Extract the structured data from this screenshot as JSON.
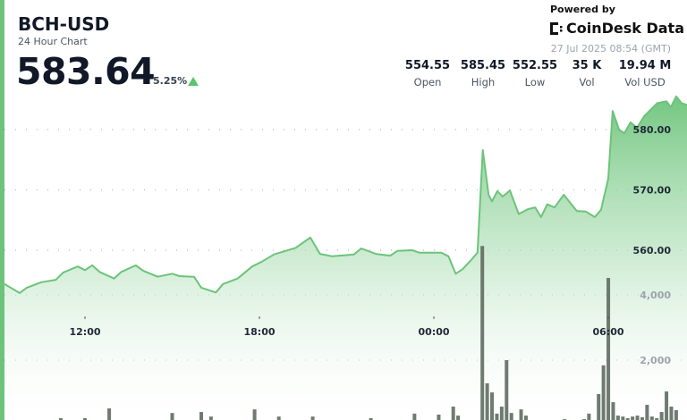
{
  "header": {
    "symbol": "BCH-USD",
    "subtitle": "24 Hour Chart",
    "price": "583.64",
    "change_pct": "5.25%",
    "change_direction": "up",
    "powered_by": "Powered by",
    "brand": "CoinDesk Data",
    "timestamp": "27 Jul 2025 08:54 (GMT)"
  },
  "stats": [
    {
      "value": "554.55",
      "label": "Open"
    },
    {
      "value": "585.45",
      "label": "High"
    },
    {
      "value": "552.55",
      "label": "Low"
    },
    {
      "value": "35 K",
      "label": "Vol"
    },
    {
      "value": "19.94 M",
      "label": "Vol USD"
    }
  ],
  "colors": {
    "accent": "#6cc47a",
    "line": "#6bc47a",
    "volume_bar": "#5f6b60",
    "up": "#5cc46e"
  },
  "chart_data": {
    "type": "line",
    "x_ticks": [
      "12:00",
      "18:00",
      "00:00",
      "06:00"
    ],
    "price_ticks": [
      "560.00",
      "570.00",
      "580.00"
    ],
    "volume_ticks": [
      "2,000",
      "4,000"
    ],
    "price_range": [
      545,
      590
    ],
    "grid": true,
    "price_series": [
      [
        "09:15",
        554.4
      ],
      [
        "09:45",
        552.9
      ],
      [
        "10:00",
        553.8
      ],
      [
        "10:30",
        554.7
      ],
      [
        "11:00",
        555.1
      ],
      [
        "11:15",
        556.3
      ],
      [
        "11:45",
        557.3
      ],
      [
        "12:00",
        556.7
      ],
      [
        "12:15",
        557.5
      ],
      [
        "12:30",
        556.4
      ],
      [
        "13:00",
        555.3
      ],
      [
        "13:15",
        556.4
      ],
      [
        "13:45",
        557.5
      ],
      [
        "14:00",
        556.6
      ],
      [
        "14:30",
        555.6
      ],
      [
        "15:00",
        556.1
      ],
      [
        "15:15",
        555.7
      ],
      [
        "15:45",
        555.6
      ],
      [
        "16:00",
        553.8
      ],
      [
        "16:30",
        553.0
      ],
      [
        "16:45",
        554.4
      ],
      [
        "17:15",
        555.3
      ],
      [
        "17:45",
        557.3
      ],
      [
        "18:05",
        558.1
      ],
      [
        "18:30",
        559.3
      ],
      [
        "19:15",
        560.4
      ],
      [
        "19:45",
        562.1
      ],
      [
        "20:05",
        559.4
      ],
      [
        "20:30",
        559.0
      ],
      [
        "21:15",
        559.3
      ],
      [
        "21:30",
        560.3
      ],
      [
        "22:00",
        559.4
      ],
      [
        "22:30",
        559.1
      ],
      [
        "22:45",
        559.9
      ],
      [
        "23:15",
        560.0
      ],
      [
        "23:30",
        559.6
      ],
      [
        "00:15",
        559.6
      ],
      [
        "00:30",
        559.0
      ],
      [
        "00:45",
        556.1
      ],
      [
        "01:00",
        556.9
      ],
      [
        "01:15",
        558.2
      ],
      [
        "01:30",
        559.6
      ],
      [
        "01:41",
        576.6
      ],
      [
        "01:53",
        569.2
      ],
      [
        "02:00",
        568.1
      ],
      [
        "02:11",
        569.8
      ],
      [
        "02:22",
        568.9
      ],
      [
        "02:37",
        569.9
      ],
      [
        "02:55",
        566.0
      ],
      [
        "03:14",
        566.8
      ],
      [
        "03:29",
        567.1
      ],
      [
        "03:41",
        565.5
      ],
      [
        "03:54",
        567.6
      ],
      [
        "04:09",
        567.1
      ],
      [
        "04:28",
        569.2
      ],
      [
        "04:55",
        566.5
      ],
      [
        "05:14",
        566.4
      ],
      [
        "05:32",
        565.5
      ],
      [
        "05:45",
        566.7
      ],
      [
        "06:00",
        571.9
      ],
      [
        "06:09",
        583.1
      ],
      [
        "06:22",
        580.0
      ],
      [
        "06:33",
        579.4
      ],
      [
        "06:46",
        581.2
      ],
      [
        "06:59",
        580.3
      ],
      [
        "07:14",
        582.2
      ],
      [
        "07:41",
        584.4
      ],
      [
        "08:00",
        584.7
      ],
      [
        "08:09",
        583.7
      ],
      [
        "08:20",
        585.5
      ],
      [
        "08:31",
        584.4
      ],
      [
        "08:42",
        584.1
      ]
    ],
    "volume_series": [
      [
        "11:10",
        220
      ],
      [
        "12:00",
        220
      ],
      [
        "12:50",
        520
      ],
      [
        "15:00",
        380
      ],
      [
        "16:00",
        410
      ],
      [
        "16:20",
        270
      ],
      [
        "17:50",
        490
      ],
      [
        "18:40",
        270
      ],
      [
        "19:50",
        270
      ],
      [
        "21:50",
        220
      ],
      [
        "23:20",
        360
      ],
      [
        "00:10",
        330
      ],
      [
        "00:40",
        575
      ],
      [
        "00:50",
        300
      ],
      [
        "01:40",
        5500
      ],
      [
        "01:50",
        1290
      ],
      [
        "02:00",
        1010
      ],
      [
        "02:10",
        360
      ],
      [
        "02:20",
        575
      ],
      [
        "02:30",
        2000
      ],
      [
        "02:40",
        380
      ],
      [
        "03:00",
        490
      ],
      [
        "03:10",
        300
      ],
      [
        "04:30",
        190
      ],
      [
        "05:10",
        190
      ],
      [
        "05:20",
        360
      ],
      [
        "05:40",
        960
      ],
      [
        "05:50",
        1840
      ],
      [
        "06:00",
        4520
      ],
      [
        "06:10",
        710
      ],
      [
        "06:20",
        300
      ],
      [
        "06:30",
        270
      ],
      [
        "06:40",
        220
      ],
      [
        "06:50",
        270
      ],
      [
        "07:00",
        300
      ],
      [
        "07:10",
        250
      ],
      [
        "07:20",
        630
      ],
      [
        "07:30",
        270
      ],
      [
        "07:40",
        220
      ],
      [
        "07:50",
        410
      ],
      [
        "08:00",
        1040
      ],
      [
        "08:10",
        575
      ],
      [
        "08:20",
        465
      ]
    ]
  }
}
